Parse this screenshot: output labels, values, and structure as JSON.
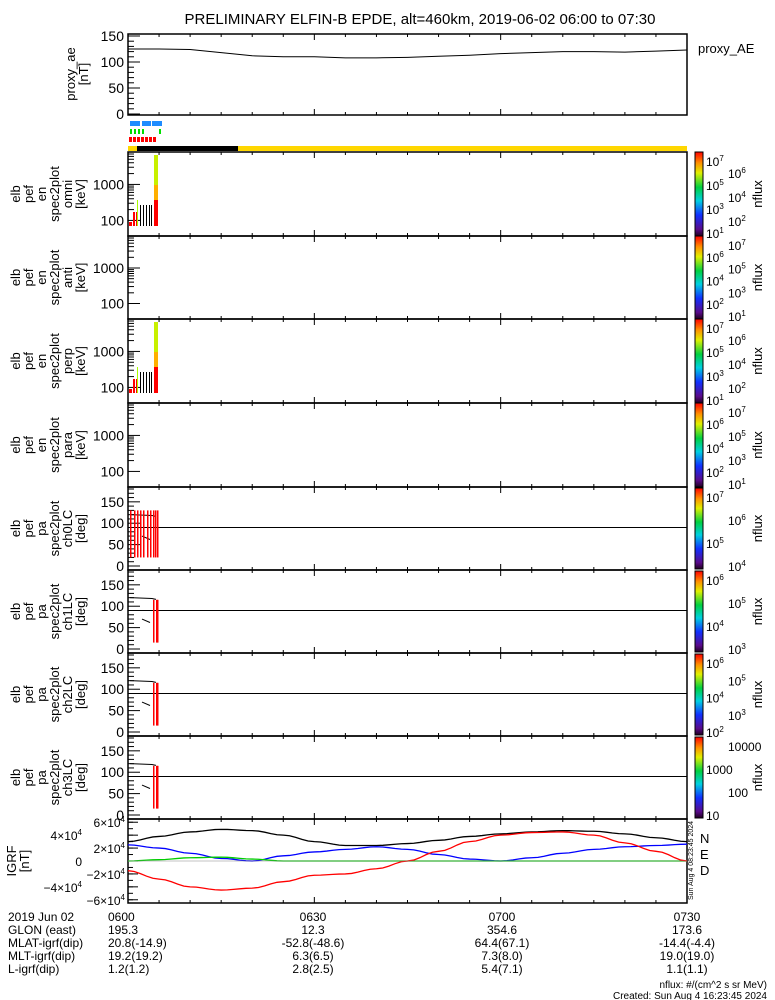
{
  "title": "PRELIMINARY ELFIN-B EPDE, alt=460km, 2019-06-02 06:00 to 07:30",
  "colors": {
    "blue_bar": "#1e8cff",
    "green_bar": "#00e000",
    "red_bar": "#ff0000",
    "yellow_bar": "#ffd700",
    "igrf_total": "#000000",
    "igrf_N": "#0000ff",
    "igrf_E": "#00cc00",
    "igrf_D": "#ff0000"
  },
  "proxy_ae": {
    "ylabel": [
      "proxy_ae",
      "[nT]"
    ],
    "legend": "proxy_AE",
    "ticks": [
      "150",
      "100",
      "50",
      "0"
    ],
    "ylim": [
      0,
      150
    ]
  },
  "spec_panels": [
    {
      "ylabel": [
        "elb",
        "pef",
        "en",
        "spec2plot",
        "omni",
        "[keV]"
      ],
      "ticks": [
        "1000",
        "100"
      ],
      "cbar_label": "nflux",
      "cbar_ticks": [
        [
          "10",
          "7"
        ],
        [
          "10",
          "6"
        ],
        [
          "10",
          "5"
        ],
        [
          "10",
          "4"
        ],
        [
          "10",
          "3"
        ],
        [
          "10",
          "2"
        ],
        [
          "10",
          "1"
        ]
      ]
    },
    {
      "ylabel": [
        "elb",
        "pef",
        "en",
        "spec2plot",
        "anti",
        "[keV]"
      ],
      "ticks": [
        "1000",
        "100"
      ],
      "cbar_label": "nflux",
      "cbar_ticks": [
        [
          "10",
          "7"
        ],
        [
          "10",
          "6"
        ],
        [
          "10",
          "5"
        ],
        [
          "10",
          "4"
        ],
        [
          "10",
          "3"
        ],
        [
          "10",
          "2"
        ],
        [
          "10",
          "1"
        ]
      ]
    },
    {
      "ylabel": [
        "elb",
        "pef",
        "en",
        "spec2plot",
        "perp",
        "[keV]"
      ],
      "ticks": [
        "1000",
        "100"
      ],
      "cbar_label": "nflux",
      "cbar_ticks": [
        [
          "10",
          "7"
        ],
        [
          "10",
          "6"
        ],
        [
          "10",
          "5"
        ],
        [
          "10",
          "4"
        ],
        [
          "10",
          "3"
        ],
        [
          "10",
          "2"
        ],
        [
          "10",
          "1"
        ]
      ]
    },
    {
      "ylabel": [
        "elb",
        "pef",
        "en",
        "spec2plot",
        "para",
        "[keV]"
      ],
      "ticks": [
        "1000",
        "100"
      ],
      "cbar_label": "nflux",
      "cbar_ticks": [
        [
          "10",
          "7"
        ],
        [
          "10",
          "6"
        ],
        [
          "10",
          "5"
        ],
        [
          "10",
          "4"
        ],
        [
          "10",
          "3"
        ],
        [
          "10",
          "2"
        ],
        [
          "10",
          "1"
        ]
      ]
    }
  ],
  "pa_panels": [
    {
      "ylabel": [
        "elb",
        "pef",
        "pa",
        "spec2plot",
        "ch0LC",
        "[deg]"
      ],
      "ticks": [
        "150",
        "100",
        "50",
        "0"
      ],
      "cbar_label": "nflux",
      "cbar_ticks": [
        [
          "10",
          "7"
        ],
        [
          "10",
          "6"
        ],
        [
          "10",
          "5"
        ],
        [
          "10",
          "4"
        ]
      ]
    },
    {
      "ylabel": [
        "elb",
        "pef",
        "pa",
        "spec2plot",
        "ch1LC",
        "[deg]"
      ],
      "ticks": [
        "150",
        "100",
        "50",
        "0"
      ],
      "cbar_label": "nflux",
      "cbar_ticks": [
        [
          "10",
          "6"
        ],
        [
          "10",
          "5"
        ],
        [
          "10",
          "4"
        ],
        [
          "10",
          "3"
        ]
      ]
    },
    {
      "ylabel": [
        "elb",
        "pef",
        "pa",
        "spec2plot",
        "ch2LC",
        "[deg]"
      ],
      "ticks": [
        "150",
        "100",
        "50",
        "0"
      ],
      "cbar_label": "nflux",
      "cbar_ticks": [
        [
          "10",
          "6"
        ],
        [
          "10",
          "5"
        ],
        [
          "10",
          "4"
        ],
        [
          "10",
          "3"
        ],
        [
          "10",
          "2"
        ]
      ]
    },
    {
      "ylabel": [
        "elb",
        "pef",
        "pa",
        "spec2plot",
        "ch3LC",
        "[deg]"
      ],
      "ticks": [
        "150",
        "100",
        "50",
        "0"
      ],
      "cbar_label": "nflux",
      "cbar_ticks": [
        [
          "10000",
          ""
        ],
        [
          "1000",
          ""
        ],
        [
          "100",
          ""
        ],
        [
          "10",
          ""
        ]
      ]
    }
  ],
  "igrf": {
    "ylabel": [
      "IGRF",
      "[nT]"
    ],
    "ticks": [
      [
        "6×10",
        "4"
      ],
      [
        "4×10",
        "4"
      ],
      [
        "2×10",
        "4"
      ],
      [
        "0",
        ""
      ],
      [
        "−2×10",
        "4"
      ],
      [
        "−4×10",
        "4"
      ],
      [
        "−6×10",
        "4"
      ]
    ],
    "legend": [
      "N",
      "E",
      "D"
    ],
    "stamp": "Sun Aug  4 08:23:45 2024"
  },
  "chart_data": [
    {
      "type": "line",
      "title": "proxy_ae",
      "ylabel": "proxy_ae [nT]",
      "ylim": [
        0,
        150
      ],
      "x_minutes": [
        0,
        5,
        10,
        15,
        20,
        25,
        30,
        35,
        40,
        45,
        50,
        55,
        60,
        65,
        70,
        75,
        80,
        85,
        90
      ],
      "values": [
        125,
        125,
        124,
        118,
        112,
        110,
        110,
        108,
        108,
        109,
        111,
        113,
        116,
        118,
        120,
        120,
        119,
        121,
        123
      ]
    },
    {
      "type": "line",
      "title": "IGRF",
      "ylabel": "IGRF [nT]",
      "ylim": [
        -65000,
        65000
      ],
      "x_minutes": [
        0,
        5,
        10,
        15,
        20,
        25,
        30,
        35,
        40,
        45,
        50,
        55,
        60,
        65,
        70,
        75,
        80,
        85,
        90
      ],
      "series": [
        {
          "name": "total",
          "values": [
            30000,
            38000,
            45000,
            49000,
            47000,
            40000,
            30000,
            24000,
            24000,
            27000,
            32000,
            38000,
            42000,
            45000,
            47000,
            46000,
            42000,
            36000,
            30000
          ]
        },
        {
          "name": "N",
          "values": [
            25000,
            20000,
            12000,
            4000,
            0,
            8000,
            14000,
            18000,
            22000,
            18000,
            10000,
            3000,
            0,
            5000,
            12000,
            18000,
            22000,
            24000,
            26000
          ]
        },
        {
          "name": "E",
          "values": [
            0,
            2000,
            5000,
            6000,
            3000,
            0,
            0,
            0,
            0,
            0,
            0,
            0,
            0,
            0,
            0,
            0,
            0,
            0,
            0
          ]
        },
        {
          "name": "D",
          "values": [
            -15000,
            -28000,
            -40000,
            -45000,
            -42000,
            -32000,
            -22000,
            -20000,
            -12000,
            0,
            15000,
            30000,
            40000,
            44000,
            45000,
            40000,
            28000,
            15000,
            0
          ]
        }
      ]
    }
  ],
  "footer": {
    "row_labels": [
      "2019 Jun 02",
      "GLON (east)",
      "MLAT-igrf(dip)",
      "MLT-igrf(dip)",
      "L-igrf(dip)"
    ],
    "columns": [
      {
        "time": "0600",
        "glon": "195.3",
        "mlat": "20.8(-14.9)",
        "mlt": "19.2(19.2)",
        "l": "1.2(1.2)"
      },
      {
        "time": "0630",
        "glon": "12.3",
        "mlat": "-52.8(-48.6)",
        "mlt": "6.3(6.5)",
        "l": "2.8(2.5)"
      },
      {
        "time": "0700",
        "glon": "354.6",
        "mlat": "64.4(67.1)",
        "mlt": "7.3(8.0)",
        "l": "5.4(7.1)"
      },
      {
        "time": "0730",
        "glon": "173.6",
        "mlat": "-14.4(-4.4)",
        "mlt": "19.0(19.0)",
        "l": "1.1(1.1)"
      }
    ],
    "units_note": "nflux: #/(cm^2 s sr MeV)",
    "created": "Created: Sun Aug  4 16:23:45 2024"
  }
}
